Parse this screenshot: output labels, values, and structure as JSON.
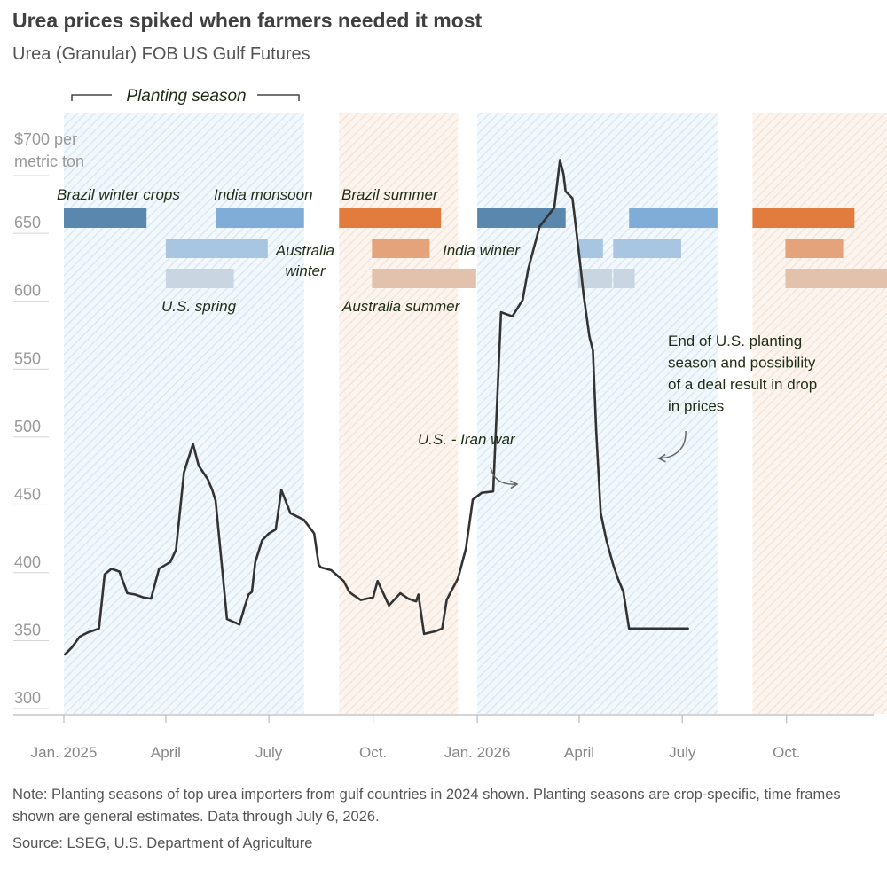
{
  "title": "Urea prices spiked when farmers needed it most",
  "subtitle": "Urea (Granular) FOB US Gulf Futures",
  "note": "Note: Planting seasons of top urea importers from gulf countries in 2024 shown. Planting seasons are crop-specific, time frames shown are general estimates. Data through July 6, 2026.",
  "source": "Source: LSEG, U.S. Department of Agriculture",
  "chart_data": {
    "type": "line",
    "series": [
      {
        "x": [
          "2025-01-02",
          "2025-01-08",
          "2025-01-15",
          "2025-01-22",
          "2025-02-01",
          "2025-02-06",
          "2025-02-12",
          "2025-02-19",
          "2025-02-26",
          "2025-03-05",
          "2025-03-12",
          "2025-03-19",
          "2025-03-26",
          "2025-04-01",
          "2025-04-05",
          "2025-04-10",
          "2025-04-17",
          "2025-04-25",
          "2025-04-30",
          "2025-05-08",
          "2025-05-12",
          "2025-05-15",
          "2025-05-25",
          "2025-06-05",
          "2025-06-10",
          "2025-06-13",
          "2025-06-16",
          "2025-06-19",
          "2025-06-25",
          "2025-07-01",
          "2025-07-07",
          "2025-07-12",
          "2025-07-20",
          "2025-08-01",
          "2025-08-10",
          "2025-08-14",
          "2025-08-16",
          "2025-08-25",
          "2025-09-05",
          "2025-09-10",
          "2025-09-13",
          "2025-09-20",
          "2025-10-01",
          "2025-10-05",
          "2025-10-15",
          "2025-10-25",
          "2025-11-01",
          "2025-11-08",
          "2025-11-10",
          "2025-11-15",
          "2025-11-25",
          "2025-12-01",
          "2025-12-05",
          "2025-12-08",
          "2025-12-15",
          "2025-12-22",
          "2025-12-28",
          "2026-01-05",
          "2026-01-15",
          "2026-01-22",
          "2026-02-01",
          "2026-02-10",
          "2026-02-15",
          "2026-02-25",
          "2026-03-10",
          "2026-03-15",
          "2026-03-18",
          "2026-03-20",
          "2026-03-26",
          "2026-04-01",
          "2026-04-05",
          "2026-04-10",
          "2026-04-13",
          "2026-04-16",
          "2026-04-20",
          "2026-04-25",
          "2026-05-01",
          "2026-05-05",
          "2026-05-10",
          "2026-05-15",
          "2026-05-20",
          "2026-05-28",
          "2026-06-02",
          "2026-06-05",
          "2026-06-12",
          "2026-06-20",
          "2026-06-27",
          "2026-07-01",
          "2026-07-06"
        ],
        "values": [
          336,
          341,
          349,
          352,
          355,
          395,
          399,
          397,
          381,
          380,
          378,
          377,
          399,
          402,
          404,
          413,
          470,
          491,
          475,
          465,
          457,
          449,
          362,
          358,
          372,
          380,
          382,
          404,
          420,
          425,
          428,
          457,
          440,
          435,
          425,
          402,
          400,
          398,
          390,
          382,
          380,
          376,
          378,
          390,
          372,
          381,
          377,
          375,
          380,
          351,
          353,
          355,
          376,
          381,
          392,
          414,
          450,
          455,
          456,
          588,
          585,
          597,
          620,
          651,
          665,
          700,
          690,
          677,
          672,
          630,
          600,
          570,
          560,
          500,
          440,
          420,
          402,
          392,
          382,
          355,
          355,
          355,
          355,
          355,
          355,
          355,
          355,
          355,
          355
        ],
        "color": "#333333"
      }
    ],
    "ylabel": "$700 per metric ton",
    "yticks": [
      300,
      350,
      400,
      450,
      500,
      550,
      600,
      650
    ],
    "ylim": [
      300,
      700
    ],
    "xticks": [
      {
        "date": "2025-01-01",
        "label": "Jan. 2025"
      },
      {
        "date": "2025-04-01",
        "label": "April"
      },
      {
        "date": "2025-07-01",
        "label": "July"
      },
      {
        "date": "2025-10-01",
        "label": "Oct."
      },
      {
        "date": "2026-01-01",
        "label": "Jan. 2026"
      },
      {
        "date": "2026-04-01",
        "label": "April"
      },
      {
        "date": "2026-07-01",
        "label": "July"
      },
      {
        "date": "2026-10-01",
        "label": "Oct."
      }
    ],
    "xlim": [
      "2025-01-01",
      "2026-12-31"
    ],
    "shaded_periods": [
      {
        "start": "2025-01-01",
        "end": "2025-08-01",
        "color": "#4a90c8"
      },
      {
        "start": "2025-09-01",
        "end": "2025-12-15",
        "color": "#e8945a"
      },
      {
        "start": "2026-01-01",
        "end": "2026-08-01",
        "color": "#4a90c8"
      },
      {
        "start": "2026-09-01",
        "end": "2026-12-31",
        "color": "#e8945a"
      }
    ],
    "season_bars": [
      {
        "start": "2025-01-01",
        "end": "2025-03-15",
        "row": 0,
        "color": "#5a87ad",
        "label": "Brazil winter crops"
      },
      {
        "start": "2025-05-15",
        "end": "2025-08-01",
        "row": 0,
        "color": "#7fadd8",
        "label": "India monsoon"
      },
      {
        "start": "2025-09-01",
        "end": "2025-11-30",
        "row": 0,
        "color": "#e27b3e",
        "label": "Brazil summer"
      },
      {
        "start": "2026-01-01",
        "end": "2026-03-20",
        "row": 0,
        "color": "#5a87ad"
      },
      {
        "start": "2026-05-15",
        "end": "2026-08-01",
        "row": 0,
        "color": "#7fadd8"
      },
      {
        "start": "2026-09-01",
        "end": "2026-11-30",
        "row": 0,
        "color": "#e27b3e"
      },
      {
        "start": "2025-04-01",
        "end": "2025-06-30",
        "row": 1,
        "color": "#a8c6e2",
        "label": "Australia winter"
      },
      {
        "start": "2025-09-30",
        "end": "2025-11-20",
        "row": 1,
        "color": "#e5a37c",
        "label": "India winter"
      },
      {
        "start": "2026-04-01",
        "end": "2026-04-22",
        "row": 1,
        "color": "#a8c6e2"
      },
      {
        "start": "2026-05-01",
        "end": "2026-06-30",
        "row": 1,
        "color": "#a8c6e2"
      },
      {
        "start": "2026-09-30",
        "end": "2026-11-20",
        "row": 1,
        "color": "#e5a37c"
      },
      {
        "start": "2025-04-01",
        "end": "2025-05-31",
        "row": 2,
        "color": "#c9d6e1",
        "label": "U.S. spring"
      },
      {
        "start": "2025-09-30",
        "end": "2025-12-31",
        "row": 2,
        "color": "#e2c2ad",
        "label": "Australia summer"
      },
      {
        "start": "2026-03-31",
        "end": "2026-04-30",
        "row": 2,
        "color": "#c9d6e1"
      },
      {
        "start": "2026-05-01",
        "end": "2026-05-20",
        "row": 2,
        "color": "#c9d6e1"
      },
      {
        "start": "2026-09-30",
        "end": "2026-12-31",
        "row": 2,
        "color": "#e2c2ad"
      }
    ],
    "annotations": [
      {
        "text": "Planting season"
      },
      {
        "text": "U.S. - Iran war"
      },
      {
        "text": "End of U.S. planting season and possibility of a deal result in drop in prices"
      }
    ],
    "grid": false
  }
}
